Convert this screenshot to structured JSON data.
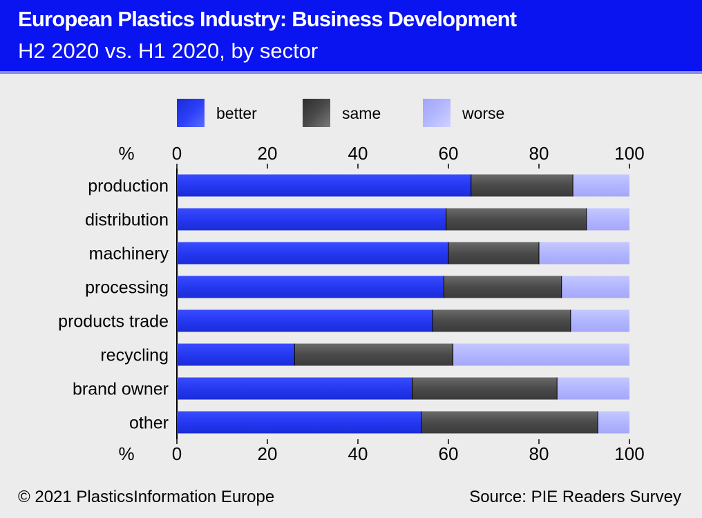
{
  "header": {
    "title": "European Plastics Industry:  Business Development",
    "subtitle": "H2 2020 vs. H1 2020, by sector"
  },
  "footer": {
    "copyright": "© 2021  PlasticsInformation  Europe",
    "source": "Source:  PIE Readers Survey"
  },
  "colors": {
    "header_bg": "#0a14f0",
    "better": "#2a3ef5",
    "same": "#4a4a4a",
    "worse": "#b4b8ff"
  },
  "chart_data": {
    "type": "bar",
    "orientation": "horizontal",
    "stacked": true,
    "unit_label": "%",
    "xlim": [
      0,
      100
    ],
    "ticks": [
      0,
      20,
      40,
      60,
      80,
      100
    ],
    "legend_position": "top",
    "categories": [
      "production",
      "distribution",
      "machinery",
      "processing",
      "products trade",
      "recycling",
      "brand owner",
      "other"
    ],
    "series": [
      {
        "name": "better",
        "values": [
          65,
          59.5,
          60,
          59,
          56.5,
          26,
          52,
          54
        ]
      },
      {
        "name": "same",
        "values": [
          22.5,
          31,
          20,
          26,
          30.5,
          35,
          32,
          39
        ]
      },
      {
        "name": "worse",
        "values": [
          12.5,
          9.5,
          20,
          15,
          13,
          39,
          16,
          7
        ]
      }
    ]
  }
}
